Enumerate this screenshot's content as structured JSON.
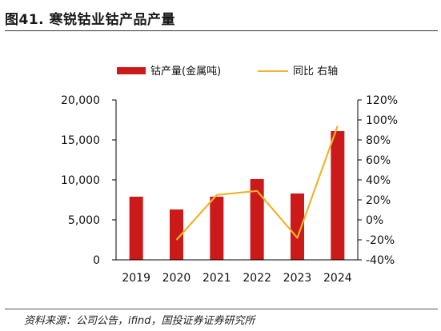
{
  "figure": {
    "title": "图41. 寒锐钴业钴产品产量",
    "source": "资料来源：公司公告，ifind，国投证券证券研究所"
  },
  "chart_data": {
    "type": "bar",
    "categories": [
      "2019",
      "2020",
      "2021",
      "2022",
      "2023",
      "2024"
    ],
    "series": [
      {
        "name": "钴产量(金属吨)",
        "type": "bar",
        "axis": "left",
        "color": "#cc1a1a",
        "values": [
          7900,
          6300,
          7900,
          10100,
          8300,
          16100
        ]
      },
      {
        "name": "同比 右轴",
        "type": "line",
        "axis": "right",
        "color": "#f0b429",
        "values": [
          null,
          -0.2,
          0.25,
          0.29,
          -0.18,
          0.94
        ]
      }
    ],
    "y_left": {
      "min": 0,
      "max": 20000,
      "ticks": [
        0,
        5000,
        10000,
        15000,
        20000
      ],
      "tick_labels": [
        "0",
        "5,000",
        "10,000",
        "15,000",
        "20,000"
      ]
    },
    "y_right": {
      "min": -0.4,
      "max": 1.2,
      "ticks": [
        -0.4,
        -0.2,
        0,
        0.2,
        0.4,
        0.6,
        0.8,
        1.0,
        1.2
      ],
      "tick_labels": [
        "-40%",
        "-20%",
        "0%",
        "20%",
        "40%",
        "60%",
        "80%",
        "100%",
        "120%"
      ]
    },
    "legend_position": "top",
    "grid": false
  }
}
